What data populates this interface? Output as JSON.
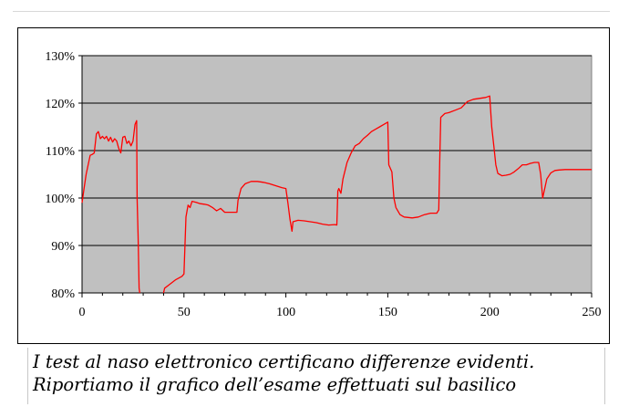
{
  "chart_data": {
    "type": "line",
    "title": "",
    "xlabel": "",
    "ylabel": "",
    "xlim": [
      0,
      250
    ],
    "ylim": [
      80,
      130
    ],
    "x_ticks": [
      "0",
      "50",
      "100",
      "150",
      "200",
      "250"
    ],
    "y_ticks": [
      "80%",
      "90%",
      "100%",
      "110%",
      "120%",
      "130%"
    ],
    "grid": "horizontal",
    "plot_background": "#c0c0c0",
    "line_color": "#ff0000",
    "series": [
      {
        "points": [
          [
            0,
            99
          ],
          [
            1,
            102
          ],
          [
            2,
            105
          ],
          [
            3,
            107
          ],
          [
            4,
            109
          ],
          [
            5,
            109.2
          ],
          [
            6,
            109.5
          ],
          [
            7,
            113.5
          ],
          [
            8,
            114
          ],
          [
            9,
            112.5
          ],
          [
            10,
            113
          ],
          [
            11,
            112.5
          ],
          [
            12,
            113
          ],
          [
            13,
            112
          ],
          [
            14,
            112.8
          ],
          [
            15,
            111.8
          ],
          [
            16,
            112.5
          ],
          [
            17,
            112
          ],
          [
            18,
            110.5
          ],
          [
            19,
            109.5
          ],
          [
            20,
            112.8
          ],
          [
            21,
            113
          ],
          [
            22,
            111.5
          ],
          [
            23,
            112
          ],
          [
            24,
            111
          ],
          [
            25,
            112
          ],
          [
            26,
            115.5
          ],
          [
            26.8,
            116.3
          ],
          [
            27,
            100
          ],
          [
            27.5,
            92
          ],
          [
            28,
            81
          ],
          [
            28.3,
            80
          ],
          [
            40,
            80
          ],
          [
            40.5,
            81
          ],
          [
            43,
            81.8
          ],
          [
            46,
            82.8
          ],
          [
            49,
            83.5
          ],
          [
            50,
            84
          ],
          [
            50.5,
            90
          ],
          [
            51,
            96
          ],
          [
            52,
            98.5
          ],
          [
            53,
            98
          ],
          [
            54,
            99.3
          ],
          [
            56,
            99.1
          ],
          [
            58,
            98.8
          ],
          [
            60,
            98.7
          ],
          [
            62,
            98.5
          ],
          [
            64,
            98
          ],
          [
            66,
            97.3
          ],
          [
            68,
            97.8
          ],
          [
            70,
            97
          ],
          [
            73,
            97
          ],
          [
            76,
            97
          ],
          [
            76.5,
            99.5
          ],
          [
            78,
            102
          ],
          [
            80,
            103
          ],
          [
            83,
            103.5
          ],
          [
            86,
            103.5
          ],
          [
            89,
            103.3
          ],
          [
            92,
            103
          ],
          [
            95,
            102.6
          ],
          [
            98,
            102.2
          ],
          [
            100,
            102
          ],
          [
            101,
            99
          ],
          [
            102,
            95.5
          ],
          [
            103,
            93
          ],
          [
            103.5,
            95
          ],
          [
            106,
            95.3
          ],
          [
            109,
            95.2
          ],
          [
            112,
            95
          ],
          [
            115,
            94.8
          ],
          [
            118,
            94.5
          ],
          [
            121,
            94.3
          ],
          [
            124,
            94.4
          ],
          [
            125,
            94.3
          ],
          [
            125.5,
            101.5
          ],
          [
            126,
            102
          ],
          [
            127,
            101
          ],
          [
            128,
            104
          ],
          [
            130,
            107.5
          ],
          [
            132,
            109.5
          ],
          [
            134,
            111
          ],
          [
            136,
            111.5
          ],
          [
            138,
            112.5
          ],
          [
            140,
            113.2
          ],
          [
            142,
            114
          ],
          [
            144,
            114.5
          ],
          [
            146,
            115
          ],
          [
            148,
            115.5
          ],
          [
            150,
            116
          ],
          [
            150.5,
            107
          ],
          [
            152,
            105.5
          ],
          [
            153,
            100
          ],
          [
            154,
            98
          ],
          [
            156,
            96.5
          ],
          [
            158,
            96
          ],
          [
            162,
            95.8
          ],
          [
            165,
            96
          ],
          [
            168,
            96.5
          ],
          [
            171,
            96.8
          ],
          [
            174,
            96.8
          ],
          [
            175,
            97.5
          ],
          [
            175.5,
            108
          ],
          [
            176,
            117
          ],
          [
            178,
            117.8
          ],
          [
            180,
            118
          ],
          [
            183,
            118.5
          ],
          [
            186,
            119
          ],
          [
            189,
            120.3
          ],
          [
            192,
            120.8
          ],
          [
            195,
            121
          ],
          [
            198,
            121.2
          ],
          [
            200,
            121.5
          ],
          [
            201,
            115
          ],
          [
            202,
            111
          ],
          [
            203,
            107
          ],
          [
            204,
            105.2
          ],
          [
            206,
            104.7
          ],
          [
            208,
            104.8
          ],
          [
            210,
            105
          ],
          [
            212,
            105.5
          ],
          [
            214,
            106.2
          ],
          [
            216,
            107
          ],
          [
            218,
            107
          ],
          [
            220,
            107.3
          ],
          [
            222,
            107.5
          ],
          [
            224,
            107.5
          ],
          [
            225,
            105
          ],
          [
            226,
            100
          ],
          [
            228,
            104
          ],
          [
            230,
            105.3
          ],
          [
            232,
            105.8
          ],
          [
            234,
            105.9
          ],
          [
            237,
            106
          ],
          [
            240,
            106
          ],
          [
            245,
            106
          ],
          [
            250,
            106
          ]
        ]
      }
    ]
  },
  "caption": {
    "line1": "I test al naso elettronico certificano differenze evidenti.",
    "line2": "Riportiamo il grafico dell’esame effettuati sul basilico"
  }
}
